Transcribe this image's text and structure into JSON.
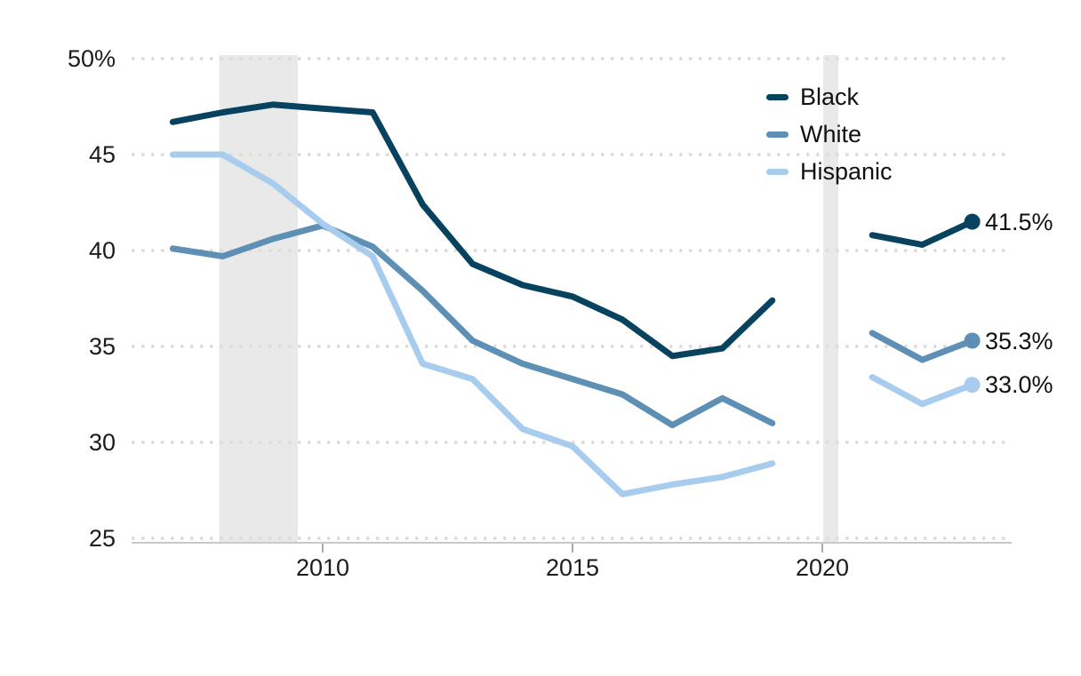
{
  "chart_data": {
    "type": "line",
    "title": "",
    "unit": "percent",
    "ylim": [
      25,
      50
    ],
    "xlim": [
      2006.6,
      2023.8
    ],
    "grid": "dotted-horizontal",
    "legend_position": "top-right",
    "yticks": [
      {
        "value": 50,
        "label": "50%"
      },
      {
        "value": 45,
        "label": "45"
      },
      {
        "value": 40,
        "label": "40"
      },
      {
        "value": 35,
        "label": "35"
      },
      {
        "value": 30,
        "label": "30"
      },
      {
        "value": 25,
        "label": "25"
      }
    ],
    "xticks": [
      {
        "value": 2010,
        "label": "2010"
      },
      {
        "value": 2015,
        "label": "2015"
      },
      {
        "value": 2020,
        "label": "2020"
      }
    ],
    "recession_bands": [
      {
        "from": 2007.93,
        "to": 2009.5
      },
      {
        "from": 2020.02,
        "to": 2020.32
      }
    ],
    "series": [
      {
        "name": "Black",
        "color": "#07425f",
        "end_label": "41.5%",
        "segments": [
          {
            "years": [
              2007,
              2008,
              2009,
              2010,
              2011,
              2012,
              2013,
              2014,
              2015,
              2016,
              2017,
              2018,
              2019
            ],
            "values": [
              46.7,
              47.2,
              47.6,
              47.4,
              47.2,
              42.4,
              39.3,
              38.2,
              37.6,
              36.4,
              34.5,
              34.9,
              37.4
            ]
          },
          {
            "years": [
              2021,
              2022,
              2023
            ],
            "values": [
              40.8,
              40.3,
              41.5
            ]
          }
        ]
      },
      {
        "name": "White",
        "color": "#5e8fb5",
        "end_label": "35.3%",
        "segments": [
          {
            "years": [
              2007,
              2008,
              2009,
              2010,
              2011,
              2012,
              2013,
              2014,
              2015,
              2016,
              2017,
              2018,
              2019
            ],
            "values": [
              40.1,
              39.7,
              40.6,
              41.3,
              40.2,
              37.9,
              35.3,
              34.1,
              33.3,
              32.5,
              30.9,
              32.3,
              31.0
            ]
          },
          {
            "years": [
              2021,
              2022,
              2023
            ],
            "values": [
              35.7,
              34.3,
              35.3
            ]
          }
        ]
      },
      {
        "name": "Hispanic",
        "color": "#a7cced",
        "end_label": "33.0%",
        "segments": [
          {
            "years": [
              2007,
              2008,
              2009,
              2010,
              2011,
              2012,
              2013,
              2014,
              2015,
              2016,
              2017,
              2018,
              2019
            ],
            "values": [
              45.0,
              45.0,
              43.5,
              41.4,
              39.7,
              34.1,
              33.3,
              30.7,
              29.8,
              27.3,
              27.8,
              28.2,
              28.9
            ]
          },
          {
            "years": [
              2021,
              2022,
              2023
            ],
            "values": [
              33.4,
              32.0,
              33.0
            ]
          }
        ]
      }
    ]
  }
}
